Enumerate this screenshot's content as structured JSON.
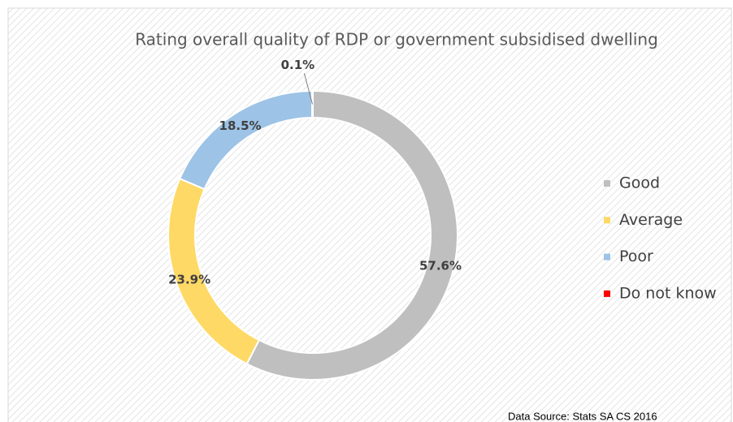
{
  "chart_data": {
    "type": "pie",
    "donut": true,
    "title": "Rating overall quality of RDP or government subsidised dwelling",
    "categories": [
      "Good",
      "Average",
      "Poor",
      "Do not know"
    ],
    "values": [
      57.6,
      23.9,
      18.5,
      0.1
    ],
    "value_labels": [
      "57.6%",
      "23.9%",
      "18.5%",
      "0.1%"
    ],
    "colors": [
      "#bfbfbf",
      "#ffd966",
      "#9dc3e6",
      "#ff0000"
    ],
    "legend": "right",
    "annotation": "Data Source: Stats SA CS 2016"
  }
}
